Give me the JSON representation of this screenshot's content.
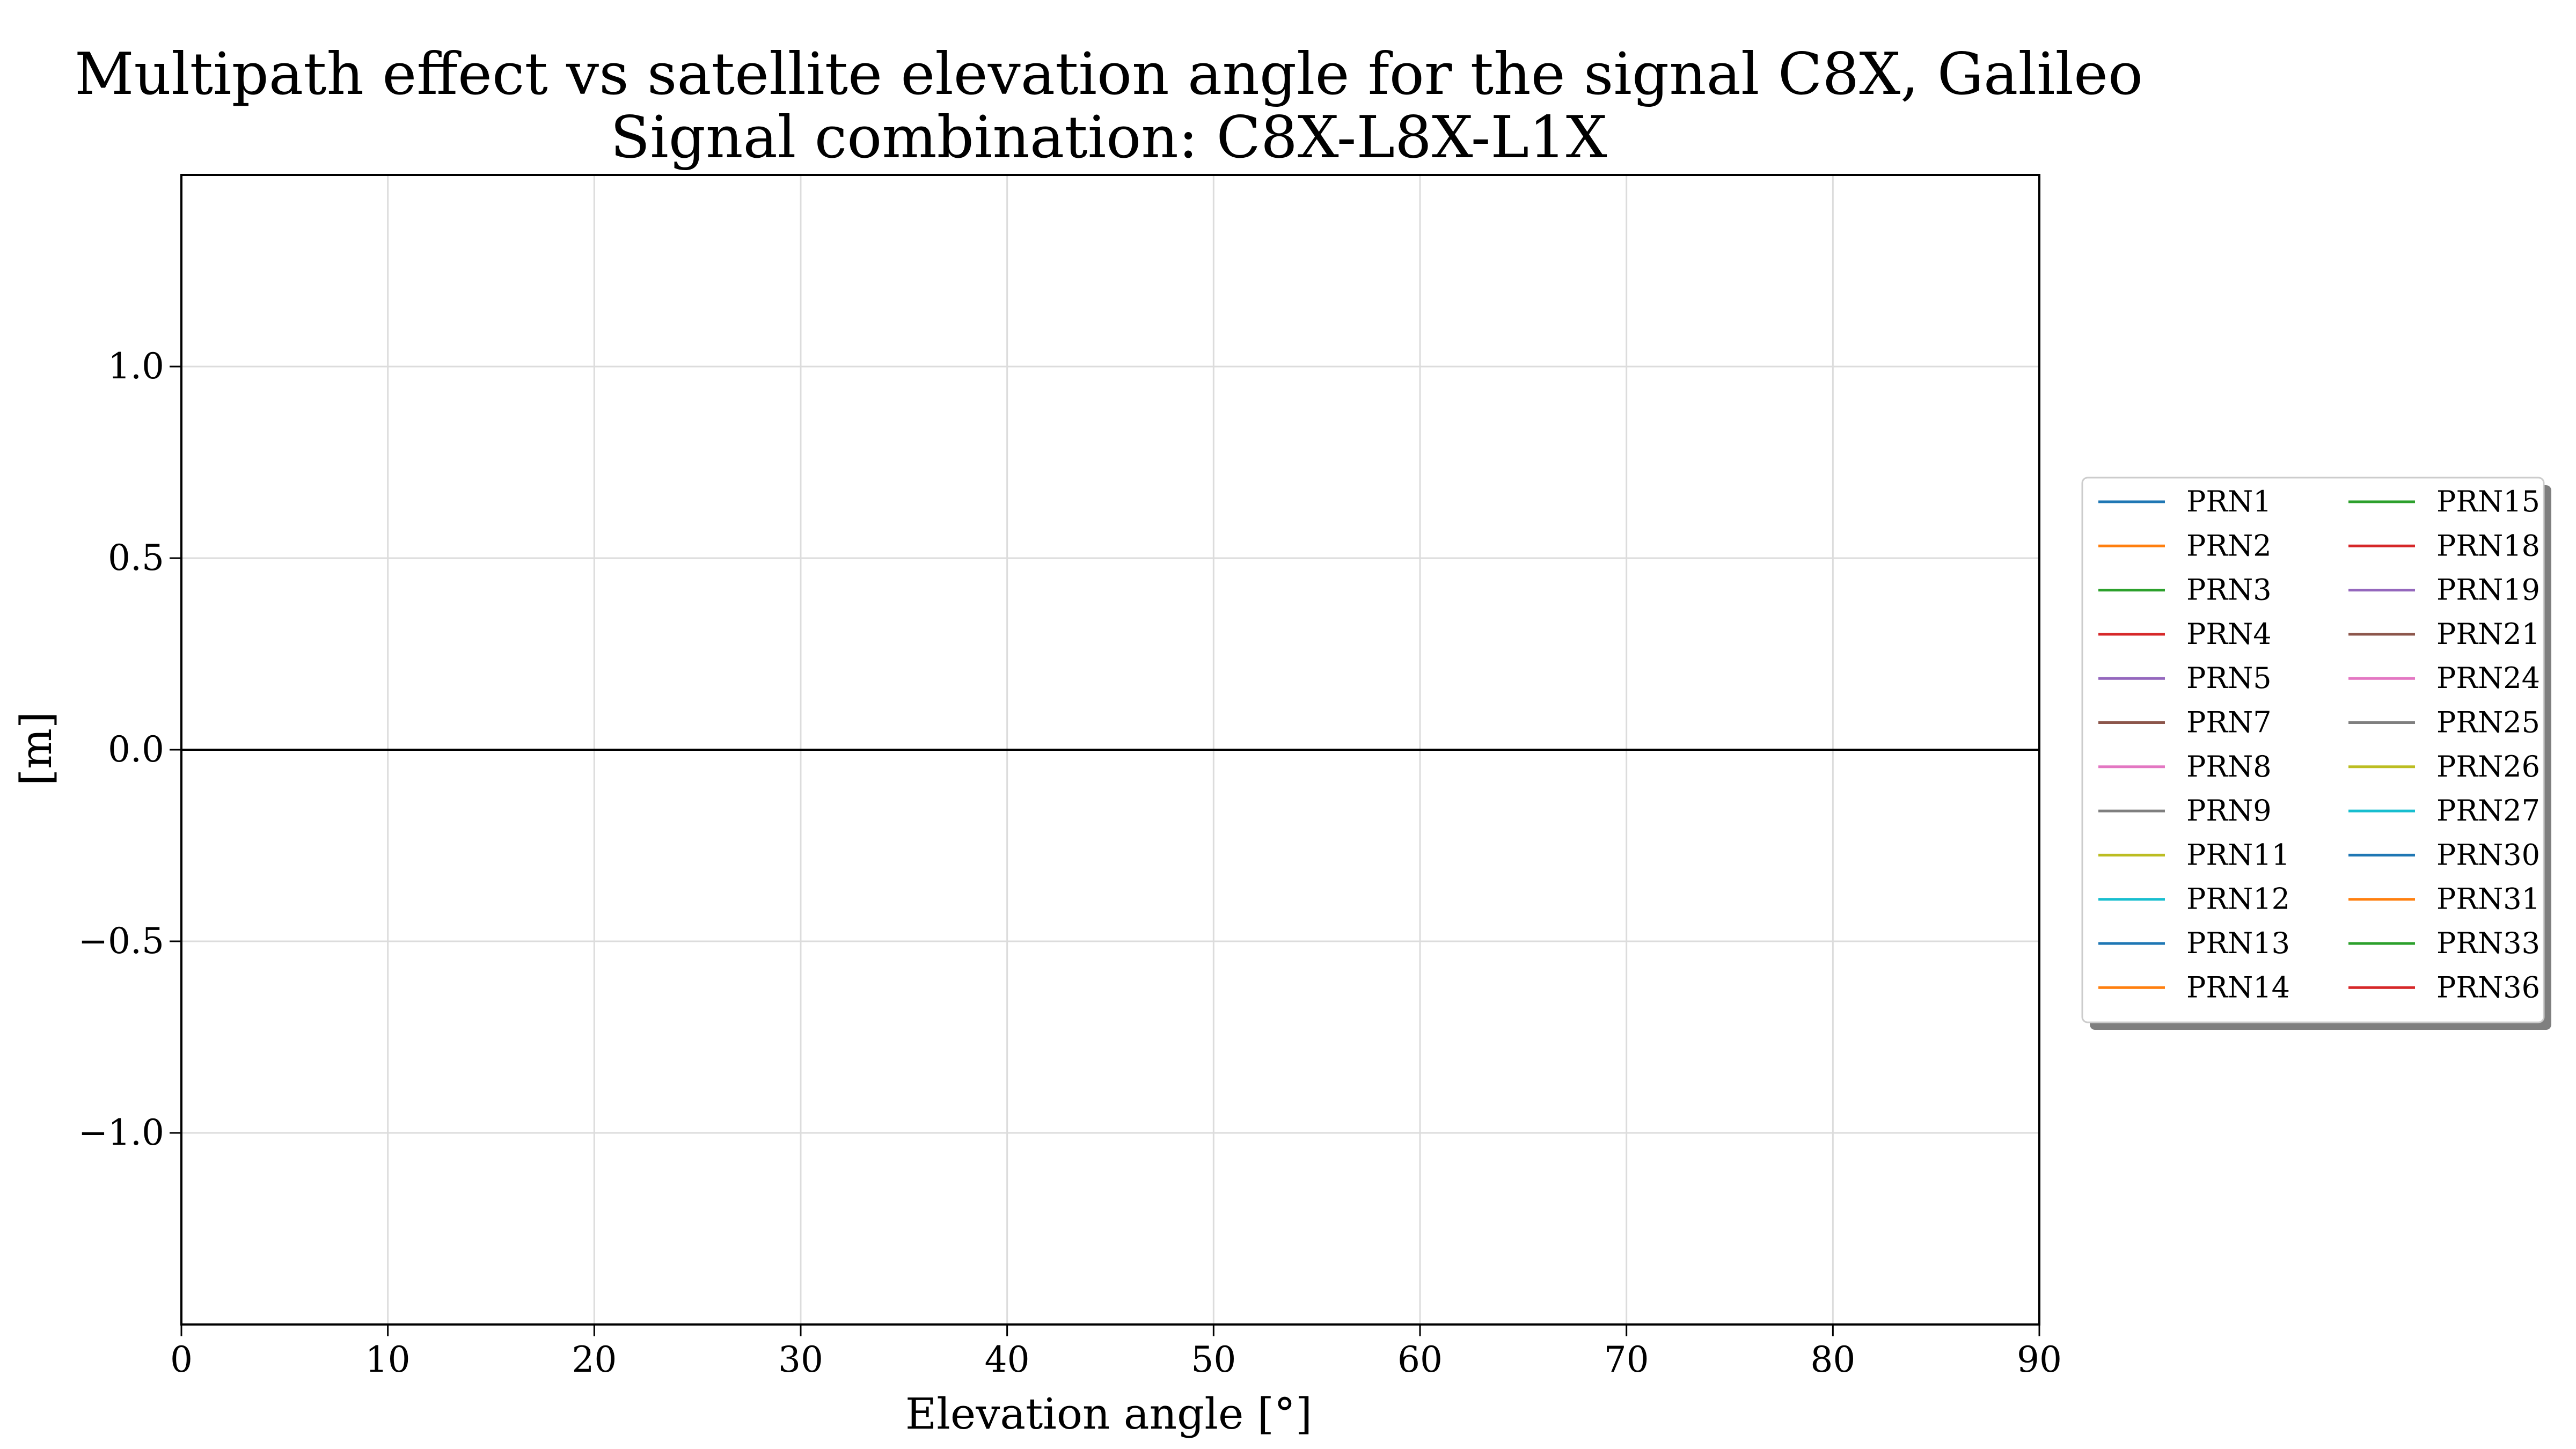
{
  "chart_data": {
    "type": "line",
    "title": "Multipath effect vs satellite elevation angle for the signal C8X, Galileo",
    "subtitle": "Signal combination: C8X-L8X-L1X",
    "xlabel": "Elevation angle [°]",
    "ylabel": "[m]",
    "xlim": [
      0,
      90
    ],
    "ylim": [
      -1.5,
      1.5
    ],
    "xticks": [
      0,
      10,
      20,
      30,
      40,
      50,
      60,
      70,
      80,
      90
    ],
    "yticks": [
      1.0,
      0.5,
      0.0,
      -0.5,
      -1.0
    ],
    "ytick_labels": [
      "1.0",
      "0.5",
      "0.0",
      "−0.5",
      "−1.0"
    ],
    "grid": true,
    "reference_line_y": 0.0,
    "legend_placement": "outside right",
    "legend_columns": 2,
    "series": [
      {
        "name": "PRN1",
        "color": "#1f77b4",
        "values": []
      },
      {
        "name": "PRN2",
        "color": "#ff7f0e",
        "values": []
      },
      {
        "name": "PRN3",
        "color": "#2ca02c",
        "values": []
      },
      {
        "name": "PRN4",
        "color": "#d62728",
        "values": []
      },
      {
        "name": "PRN5",
        "color": "#9467bd",
        "values": []
      },
      {
        "name": "PRN7",
        "color": "#8c564b",
        "values": []
      },
      {
        "name": "PRN8",
        "color": "#e377c2",
        "values": []
      },
      {
        "name": "PRN9",
        "color": "#7f7f7f",
        "values": []
      },
      {
        "name": "PRN11",
        "color": "#bcbd22",
        "values": []
      },
      {
        "name": "PRN12",
        "color": "#17becf",
        "values": []
      },
      {
        "name": "PRN13",
        "color": "#1f77b4",
        "values": []
      },
      {
        "name": "PRN14",
        "color": "#ff7f0e",
        "values": []
      },
      {
        "name": "PRN15",
        "color": "#2ca02c",
        "values": []
      },
      {
        "name": "PRN18",
        "color": "#d62728",
        "values": []
      },
      {
        "name": "PRN19",
        "color": "#9467bd",
        "values": []
      },
      {
        "name": "PRN21",
        "color": "#8c564b",
        "values": []
      },
      {
        "name": "PRN24",
        "color": "#e377c2",
        "values": []
      },
      {
        "name": "PRN25",
        "color": "#7f7f7f",
        "values": []
      },
      {
        "name": "PRN26",
        "color": "#bcbd22",
        "values": []
      },
      {
        "name": "PRN27",
        "color": "#17becf",
        "values": []
      },
      {
        "name": "PRN30",
        "color": "#1f77b4",
        "values": []
      },
      {
        "name": "PRN31",
        "color": "#ff7f0e",
        "values": []
      },
      {
        "name": "PRN33",
        "color": "#2ca02c",
        "values": []
      },
      {
        "name": "PRN36",
        "color": "#d62728",
        "values": []
      }
    ]
  }
}
